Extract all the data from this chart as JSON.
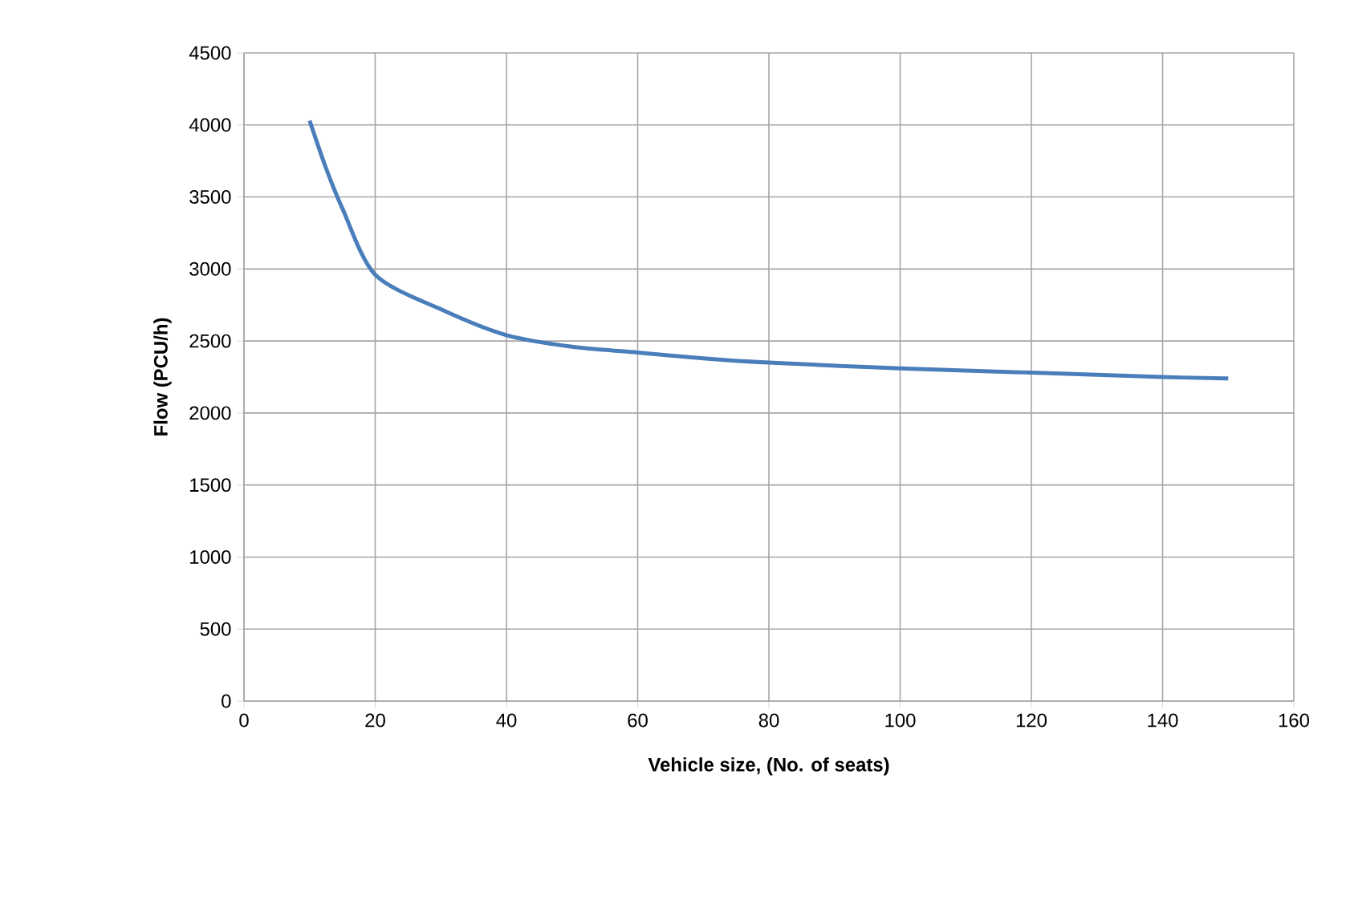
{
  "chart_data": {
    "type": "line",
    "xlabel": "Vehicle size, (No. of seats)",
    "ylabel": "Flow (PCU/h)",
    "x": [
      10,
      12.5,
      15,
      20,
      30,
      40,
      50,
      60,
      70,
      80,
      100,
      120,
      140,
      150
    ],
    "series": [
      {
        "color": "#4a7ebb",
        "values": [
          4030,
          3700,
          3420,
          2960,
          2720,
          2540,
          2460,
          2420,
          2380,
          2350,
          2310,
          2280,
          2250,
          2240
        ]
      }
    ],
    "xlim": [
      0,
      160
    ],
    "ylim": [
      0,
      4500
    ],
    "xticks": [
      0,
      20,
      40,
      60,
      80,
      100,
      120,
      140,
      160
    ],
    "yticks": [
      0,
      500,
      1000,
      1500,
      2000,
      2500,
      3000,
      3500,
      4000,
      4500
    ],
    "grid": true,
    "marker": "none",
    "line_style": "solid"
  }
}
